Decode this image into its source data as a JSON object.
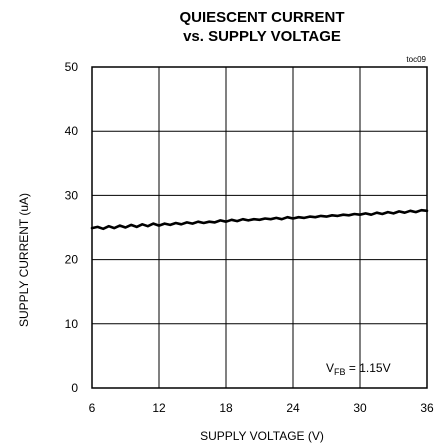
{
  "chart_data": {
    "type": "line",
    "title": "QUIESCENT CURRENT",
    "subtitle": "vs. SUPPLY VOLTAGE",
    "figure_code": "toc09",
    "xlabel": "SUPPLY VOLTAGE (V)",
    "ylabel": "SUPPLY CURRENT (uA)",
    "xlim": [
      6,
      36
    ],
    "ylim": [
      0,
      50
    ],
    "xticks": [
      6,
      12,
      18,
      24,
      30,
      36
    ],
    "yticks": [
      0,
      10,
      20,
      30,
      40,
      50
    ],
    "grid": true,
    "annotation": {
      "prefix": "V",
      "subscript": "FB",
      "suffix": " = 1.15V"
    },
    "series": [
      {
        "x": [
          6,
          6.5,
          7,
          7.5,
          8,
          8.5,
          9,
          9.5,
          10,
          10.5,
          11,
          11.5,
          12,
          12.5,
          13,
          13.5,
          14,
          14.5,
          15,
          15.5,
          16,
          16.5,
          17,
          17.5,
          18,
          18.5,
          19,
          19.5,
          20,
          20.5,
          21,
          21.5,
          22,
          22.5,
          23,
          23.5,
          24,
          24.5,
          25,
          25.5,
          26,
          26.5,
          27,
          27.5,
          28,
          28.5,
          29,
          29.5,
          30,
          30.5,
          31,
          31.5,
          32,
          32.5,
          33,
          33.5,
          34,
          34.5,
          35,
          35.5,
          36
        ],
        "values": [
          24.9,
          25.1,
          24.8,
          25.2,
          24.9,
          25.3,
          25.0,
          25.4,
          25.1,
          25.5,
          25.2,
          25.6,
          25.3,
          25.6,
          25.4,
          25.7,
          25.5,
          25.8,
          25.6,
          25.9,
          25.7,
          25.9,
          25.8,
          26.1,
          25.9,
          26.2,
          26.0,
          26.3,
          26.1,
          26.3,
          26.2,
          26.4,
          26.3,
          26.5,
          26.3,
          26.6,
          26.4,
          26.6,
          26.5,
          26.7,
          26.6,
          26.8,
          26.7,
          26.9,
          26.8,
          27.0,
          26.9,
          27.1,
          27.0,
          27.2,
          27.0,
          27.3,
          27.1,
          27.4,
          27.2,
          27.5,
          27.3,
          27.6,
          27.4,
          27.7,
          27.6
        ]
      }
    ]
  }
}
